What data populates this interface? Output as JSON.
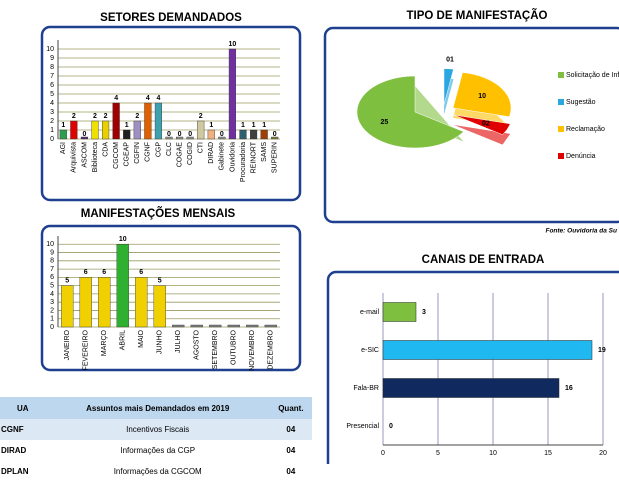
{
  "chart_data": [
    {
      "type": "bar",
      "title": "SETORES DEMANDADOS",
      "categories": [
        "AGI",
        "Arquivista",
        "ASCOM",
        "Biblioteca",
        "CDA",
        "CGCOM",
        "CGEAP",
        "CGFIN",
        "CGNF",
        "CGP",
        "CLC",
        "COGAE",
        "COGID",
        "CTI",
        "DIRAD",
        "Gabinete",
        "Ouvidoria",
        "Procuradoria",
        "REINORT",
        "SAMS",
        "SUPERIN"
      ],
      "values": [
        1,
        2,
        0,
        2,
        2,
        4,
        1,
        2,
        4,
        4,
        0,
        0,
        0,
        2,
        1,
        0,
        10,
        1,
        1,
        1,
        0
      ],
      "colors": [
        "#2e9e4e",
        "#e00000",
        "#503070",
        "#f0e000",
        "#e8d000",
        "#a00000",
        "#202020",
        "#a090c0",
        "#e06000",
        "#40a0b0",
        "#909090",
        "#909090",
        "#909090",
        "#d0c8a0",
        "#f0b080",
        "#909090",
        "#7030a0",
        "#306070",
        "#404040",
        "#a04000",
        "#808040"
      ],
      "ylim": [
        0,
        11
      ],
      "yticks": [
        0,
        1,
        2,
        3,
        4,
        5,
        6,
        7,
        8,
        9,
        10
      ],
      "grid": true
    },
    {
      "type": "pie",
      "title": "TIPO DE MANIFESTAÇÃO",
      "categories": [
        "Solicitação de Informação",
        "Sugestão",
        "Reclamação",
        "Denúncia"
      ],
      "values": [
        25,
        1,
        10,
        2
      ],
      "value_labels": [
        "25",
        "01",
        "10",
        "02"
      ],
      "colors": [
        "#7fbf3f",
        "#2aa7e0",
        "#ffc000",
        "#e00000"
      ],
      "legend": "right",
      "source": "Fonte: Ouvidoria da Su"
    },
    {
      "type": "bar",
      "title": "MANIFESTAÇÕES MENSAIS",
      "categories": [
        "JANEIRO",
        "FEVEREIRO",
        "MARÇO",
        "ABRIL",
        "MAIO",
        "JUNHO",
        "JULHO",
        "AGOSTO",
        "SETEMBRO",
        "OUTUBRO",
        "NOVEMBRO",
        "DEZEMBRO"
      ],
      "values": [
        5,
        6,
        6,
        10,
        6,
        5,
        0,
        0,
        0,
        0,
        0,
        0
      ],
      "value_labels": [
        "5",
        "6",
        "6",
        "10",
        "6",
        "5",
        null,
        null,
        null,
        null,
        null,
        null
      ],
      "colors": [
        "#f0d000",
        "#f0d000",
        "#f0d000",
        "#30b030",
        "#f0d000",
        "#f0d000",
        "#808080",
        "#808080",
        "#808080",
        "#808080",
        "#808080",
        "#808080"
      ],
      "ylim": [
        0,
        11
      ],
      "yticks": [
        0,
        1,
        2,
        3,
        4,
        5,
        6,
        7,
        8,
        9,
        10
      ],
      "grid": true
    },
    {
      "type": "bar",
      "orientation": "horizontal",
      "title": "CANAIS DE ENTRADA",
      "categories": [
        "e-mail",
        "e-SIC",
        "Fala-BR",
        "Presencial"
      ],
      "values": [
        3,
        19,
        16,
        0
      ],
      "colors": [
        "#7fbf3f",
        "#20b8f0",
        "#102a60",
        "#808080"
      ],
      "xlim": [
        0,
        20
      ],
      "xticks": [
        0,
        5,
        10,
        15,
        20
      ],
      "grid": true
    }
  ],
  "table": {
    "header": [
      "UA",
      "Assuntos mais Demandados em 2019",
      "Quant."
    ],
    "rows": [
      [
        "CGNF",
        "Incentivos Fiscais",
        "04"
      ],
      [
        "DIRAD",
        "Informações da CGP",
        "04"
      ],
      [
        "DPLAN",
        "Informações da CGCOM",
        "04"
      ]
    ]
  }
}
